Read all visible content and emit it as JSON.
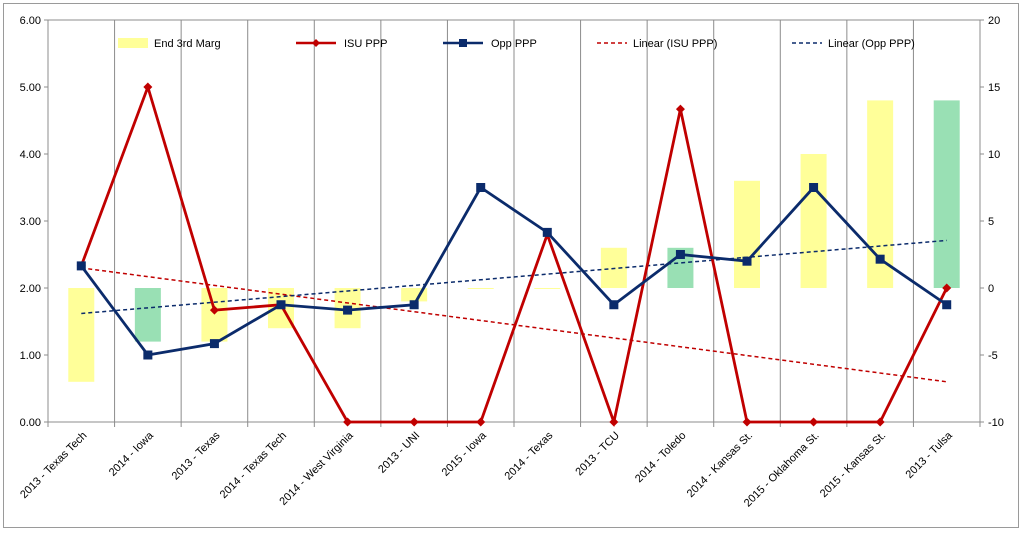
{
  "chart_data": {
    "type": "bar",
    "categories": [
      "2013 - Texas Tech",
      "2014 - Iowa",
      "2013 - Texas",
      "2014 - Texas Tech",
      "2014 - West Virginia",
      "2013 - UNI",
      "2015 - Iowa",
      "2014 - Texas",
      "2013 - TCU",
      "2014 - Toledo",
      "2014 - Kansas St.",
      "2015 - Oklahoma St.",
      "2015 - Kansas St.",
      "2013 - Tulsa"
    ],
    "bars": {
      "name": "End 3rd Marg",
      "axis": "right",
      "values": [
        -7,
        -4,
        -4,
        -3,
        -3,
        -1,
        0,
        0,
        3,
        3,
        8,
        10,
        14,
        14
      ],
      "colors": [
        "#ffff99",
        "#99e0b4",
        "#ffff99",
        "#ffff99",
        "#ffff99",
        "#ffff99",
        "#ffff99",
        "#ffff99",
        "#ffff99",
        "#99e0b4",
        "#ffff99",
        "#ffff99",
        "#ffff99",
        "#99e0b4"
      ]
    },
    "series": [
      {
        "name": "ISU PPP",
        "axis": "left",
        "color": "#c00000",
        "marker": "diamond",
        "values": [
          2.33,
          5.0,
          1.67,
          1.75,
          0,
          0,
          0,
          2.8,
          0,
          4.67,
          0,
          0,
          0,
          2.0
        ]
      },
      {
        "name": "Opp PPP",
        "axis": "left",
        "color": "#0b2b6b",
        "marker": "square",
        "values": [
          2.33,
          1.0,
          1.17,
          1.75,
          1.67,
          1.75,
          3.5,
          2.83,
          1.75,
          2.5,
          2.4,
          3.5,
          2.43,
          1.75
        ]
      }
    ],
    "trendlines": [
      {
        "name": "Linear (ISU PPP)",
        "color": "#c00000",
        "dashed": true,
        "start": 2.3,
        "end": 0.6
      },
      {
        "name": "Linear (Opp PPP)",
        "color": "#0b2b6b",
        "dashed": true,
        "start": 1.62,
        "end": 2.71
      }
    ],
    "y_left": {
      "min": 0,
      "max": 6,
      "ticks": [
        "0.00",
        "1.00",
        "2.00",
        "3.00",
        "4.00",
        "5.00",
        "6.00"
      ]
    },
    "y_right": {
      "min": -10,
      "max": 20,
      "ticks": [
        "-10",
        "-5",
        "0",
        "5",
        "10",
        "15",
        "20"
      ]
    },
    "legend_position": "top",
    "grid": {
      "horizontal": false,
      "vertical": true
    }
  }
}
